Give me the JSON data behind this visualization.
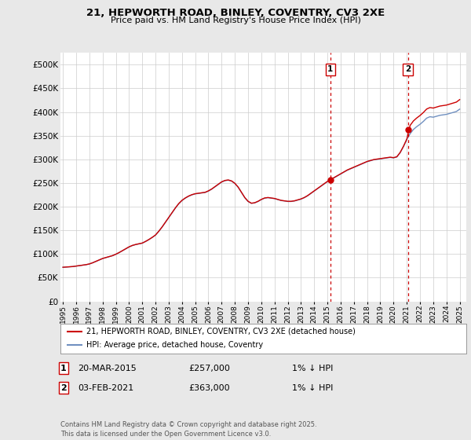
{
  "title_line1": "21, HEPWORTH ROAD, BINLEY, COVENTRY, CV3 2XE",
  "title_line2": "Price paid vs. HM Land Registry's House Price Index (HPI)",
  "ylabel_ticks": [
    "£0",
    "£50K",
    "£100K",
    "£150K",
    "£200K",
    "£250K",
    "£300K",
    "£350K",
    "£400K",
    "£450K",
    "£500K"
  ],
  "ytick_values": [
    0,
    50000,
    100000,
    150000,
    200000,
    250000,
    300000,
    350000,
    400000,
    450000,
    500000
  ],
  "ylim": [
    0,
    525000
  ],
  "hpi_color": "#7090c0",
  "price_color": "#cc0000",
  "grid_color": "#cccccc",
  "background_color": "#e8e8e8",
  "plot_bg_color": "#ffffff",
  "marker1_label": "20-MAR-2015",
  "marker1_price": "£257,000",
  "marker1_hpi": "1% ↓ HPI",
  "marker2_label": "03-FEB-2021",
  "marker2_price": "£363,000",
  "marker2_hpi": "1% ↓ HPI",
  "legend_line1": "21, HEPWORTH ROAD, BINLEY, COVENTRY, CV3 2XE (detached house)",
  "legend_line2": "HPI: Average price, detached house, Coventry",
  "footer": "Contains HM Land Registry data © Crown copyright and database right 2025.\nThis data is licensed under the Open Government Licence v3.0.",
  "hpi_data_years": [
    1995.0,
    1995.25,
    1995.5,
    1995.75,
    1996.0,
    1996.25,
    1996.5,
    1996.75,
    1997.0,
    1997.25,
    1997.5,
    1997.75,
    1998.0,
    1998.25,
    1998.5,
    1998.75,
    1999.0,
    1999.25,
    1999.5,
    1999.75,
    2000.0,
    2000.25,
    2000.5,
    2000.75,
    2001.0,
    2001.25,
    2001.5,
    2001.75,
    2002.0,
    2002.25,
    2002.5,
    2002.75,
    2003.0,
    2003.25,
    2003.5,
    2003.75,
    2004.0,
    2004.25,
    2004.5,
    2004.75,
    2005.0,
    2005.25,
    2005.5,
    2005.75,
    2006.0,
    2006.25,
    2006.5,
    2006.75,
    2007.0,
    2007.25,
    2007.5,
    2007.75,
    2008.0,
    2008.25,
    2008.5,
    2008.75,
    2009.0,
    2009.25,
    2009.5,
    2009.75,
    2010.0,
    2010.25,
    2010.5,
    2010.75,
    2011.0,
    2011.25,
    2011.5,
    2011.75,
    2012.0,
    2012.25,
    2012.5,
    2012.75,
    2013.0,
    2013.25,
    2013.5,
    2013.75,
    2014.0,
    2014.25,
    2014.5,
    2014.75,
    2015.0,
    2015.25,
    2015.5,
    2015.75,
    2016.0,
    2016.25,
    2016.5,
    2016.75,
    2017.0,
    2017.25,
    2017.5,
    2017.75,
    2018.0,
    2018.25,
    2018.5,
    2018.75,
    2019.0,
    2019.25,
    2019.5,
    2019.75,
    2020.0,
    2020.25,
    2020.5,
    2020.75,
    2021.0,
    2021.25,
    2021.5,
    2021.75,
    2022.0,
    2022.25,
    2022.5,
    2022.75,
    2023.0,
    2023.25,
    2023.5,
    2023.75,
    2024.0,
    2024.25,
    2024.5,
    2024.75,
    2025.0
  ],
  "hpi_data_values": [
    72000,
    72500,
    73000,
    73500,
    74500,
    75500,
    76500,
    77500,
    79000,
    81500,
    84500,
    87500,
    90500,
    92500,
    94500,
    96500,
    99500,
    103000,
    107000,
    111000,
    115000,
    118000,
    120000,
    121500,
    123000,
    126500,
    130500,
    135000,
    140000,
    148000,
    157000,
    167000,
    177000,
    187000,
    197000,
    206000,
    213000,
    218000,
    222000,
    225000,
    227000,
    228000,
    229000,
    230000,
    233000,
    237000,
    242000,
    247000,
    252000,
    255000,
    256000,
    254000,
    249000,
    241000,
    230000,
    219000,
    211000,
    207000,
    208000,
    211000,
    215000,
    218000,
    219000,
    218000,
    217000,
    215000,
    213000,
    212000,
    211000,
    211000,
    212000,
    214000,
    216000,
    219000,
    223000,
    228000,
    233000,
    238000,
    243000,
    248000,
    253000,
    257000,
    261000,
    265000,
    269000,
    273000,
    277000,
    280000,
    283000,
    286000,
    289000,
    292000,
    295000,
    297000,
    299000,
    300000,
    301000,
    302000,
    303000,
    304000,
    303000,
    305000,
    314000,
    327000,
    342000,
    354000,
    363000,
    369000,
    374000,
    380000,
    387000,
    390000,
    389000,
    391000,
    393000,
    394000,
    395000,
    397000,
    399000,
    401000,
    406000
  ],
  "sale_events": [
    {
      "year": 2015.22,
      "price": 257000,
      "label": "1"
    },
    {
      "year": 2021.08,
      "price": 363000,
      "label": "2"
    }
  ]
}
